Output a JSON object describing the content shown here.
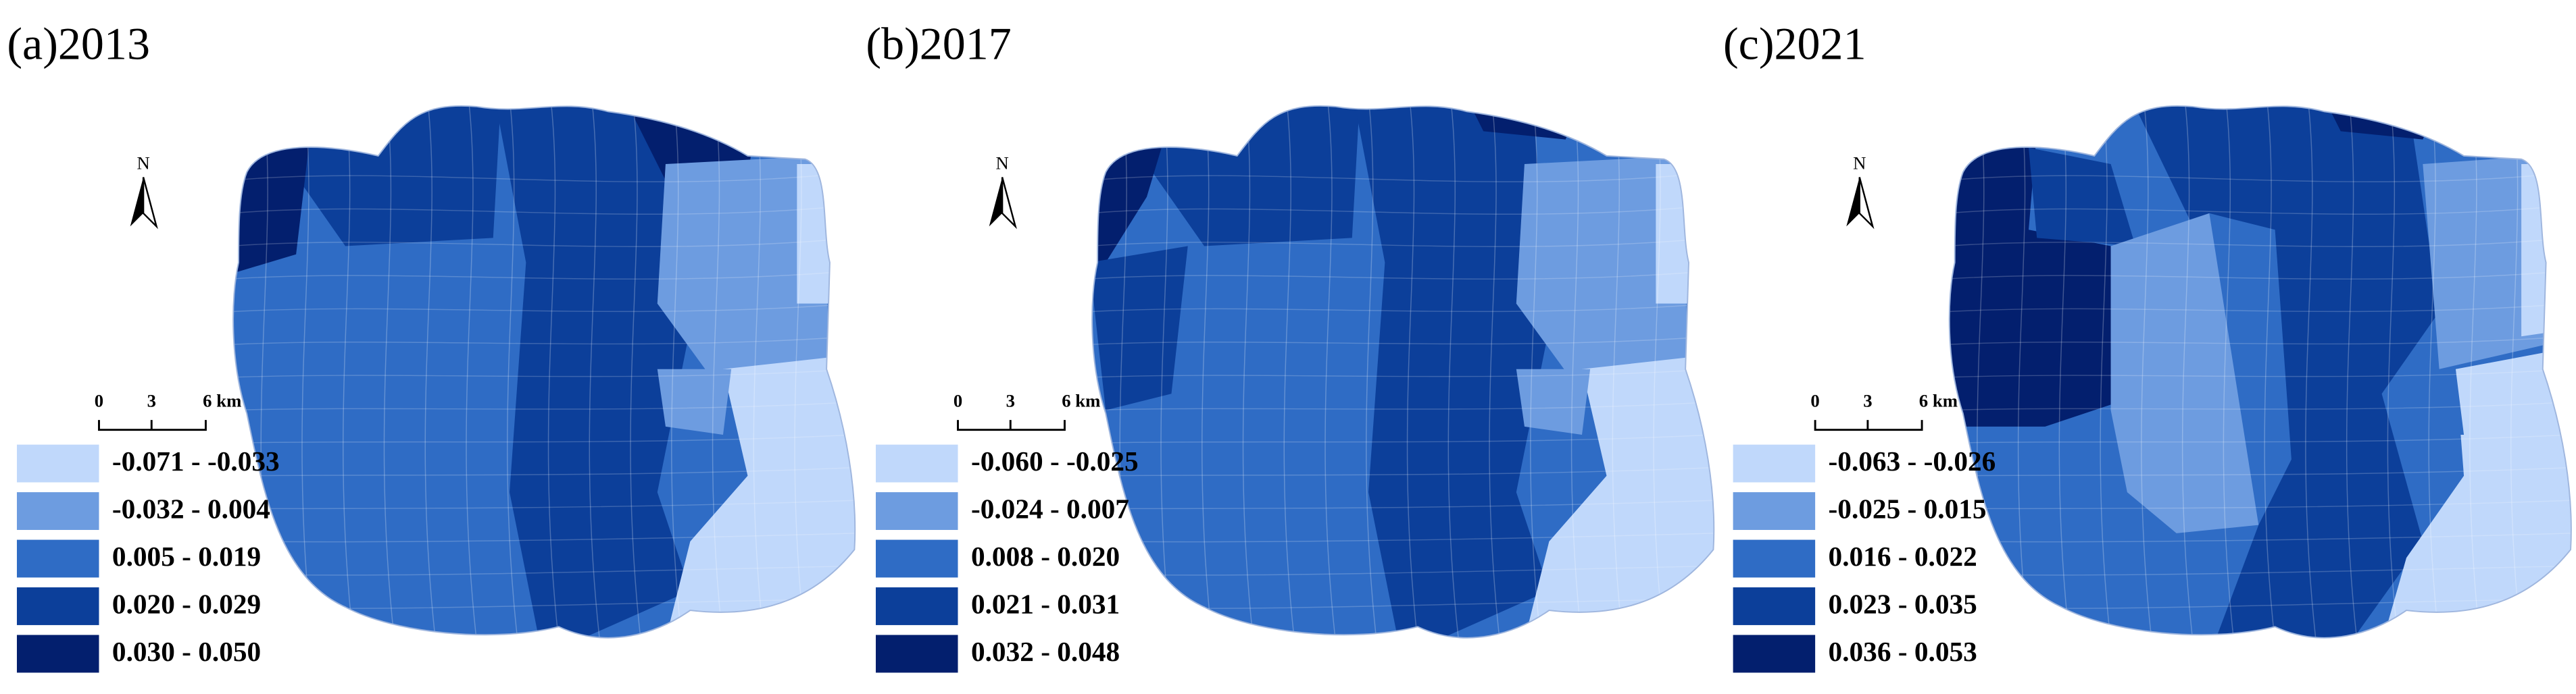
{
  "panels": [
    {
      "title": "(a)2013",
      "north": "N",
      "scale": [
        "0",
        "3",
        "6 km"
      ],
      "legend": [
        {
          "label": "-0.071 - -0.033",
          "color": "#c0d8fb"
        },
        {
          "label": "-0.032 - 0.004",
          "color": "#6d9ce0"
        },
        {
          "label": "0.005 - 0.019",
          "color": "#2f6cc5"
        },
        {
          "label": "0.020 - 0.029",
          "color": "#0c3f9a"
        },
        {
          "label": "0.030 - 0.050",
          "color": "#031f6e"
        }
      ]
    },
    {
      "title": "(b)2017",
      "north": "N",
      "scale": [
        "0",
        "3",
        "6 km"
      ],
      "legend": [
        {
          "label": "-0.060 - -0.025",
          "color": "#c0d8fb"
        },
        {
          "label": "-0.024 - 0.007",
          "color": "#6d9ce0"
        },
        {
          "label": "0.008 - 0.020",
          "color": "#2f6cc5"
        },
        {
          "label": "0.021 - 0.031",
          "color": "#0c3f9a"
        },
        {
          "label": "0.032 - 0.048",
          "color": "#031f6e"
        }
      ]
    },
    {
      "title": "(c)2021",
      "north": "N",
      "scale": [
        "0",
        "3",
        "6 km"
      ],
      "legend": [
        {
          "label": "-0.063 - -0.026",
          "color": "#c0d8fb"
        },
        {
          "label": "-0.025 - 0.015",
          "color": "#6d9ce0"
        },
        {
          "label": "0.016 - 0.022",
          "color": "#2f6cc5"
        },
        {
          "label": "0.023 - 0.035",
          "color": "#0c3f9a"
        },
        {
          "label": "0.036 - 0.053",
          "color": "#031f6e"
        }
      ]
    }
  ]
}
